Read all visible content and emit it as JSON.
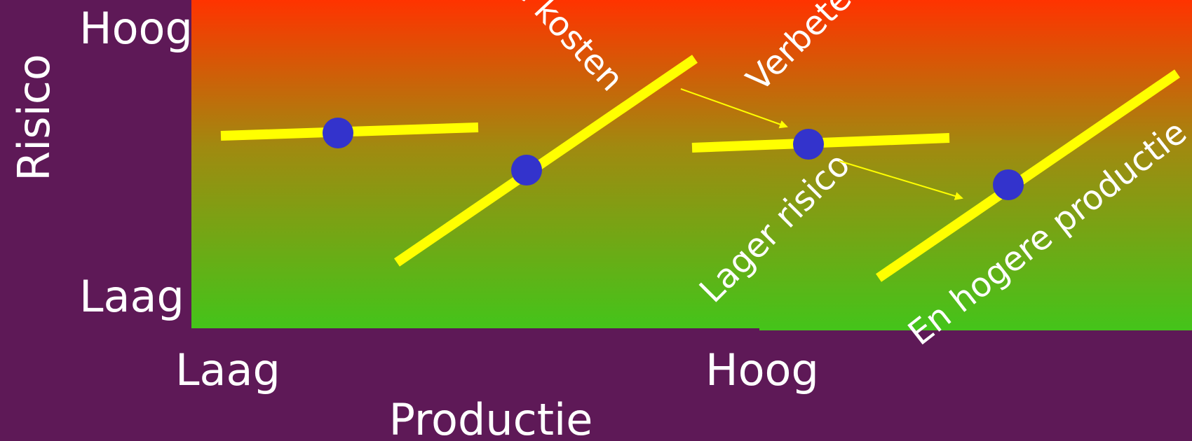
{
  "colors": {
    "background": "#5e1957",
    "gradient_top": "#ff3300",
    "gradient_bottom": "#44c41a",
    "line": "#ffff00",
    "dot": "#3333cc",
    "arrow": "#ffff00",
    "text": "#ffffff"
  },
  "y_axis": {
    "title": "Risico",
    "high_label": "Hoog",
    "low_label": "Laag"
  },
  "x_axis": {
    "title": "Productie",
    "low_label": "Laag",
    "high_label": "Hoog"
  },
  "annotations": {
    "costs": "Hogere kosten",
    "improved": "Verbeterde",
    "lower_risk": "Lager risico",
    "higher_production": "En hogere productie"
  }
}
